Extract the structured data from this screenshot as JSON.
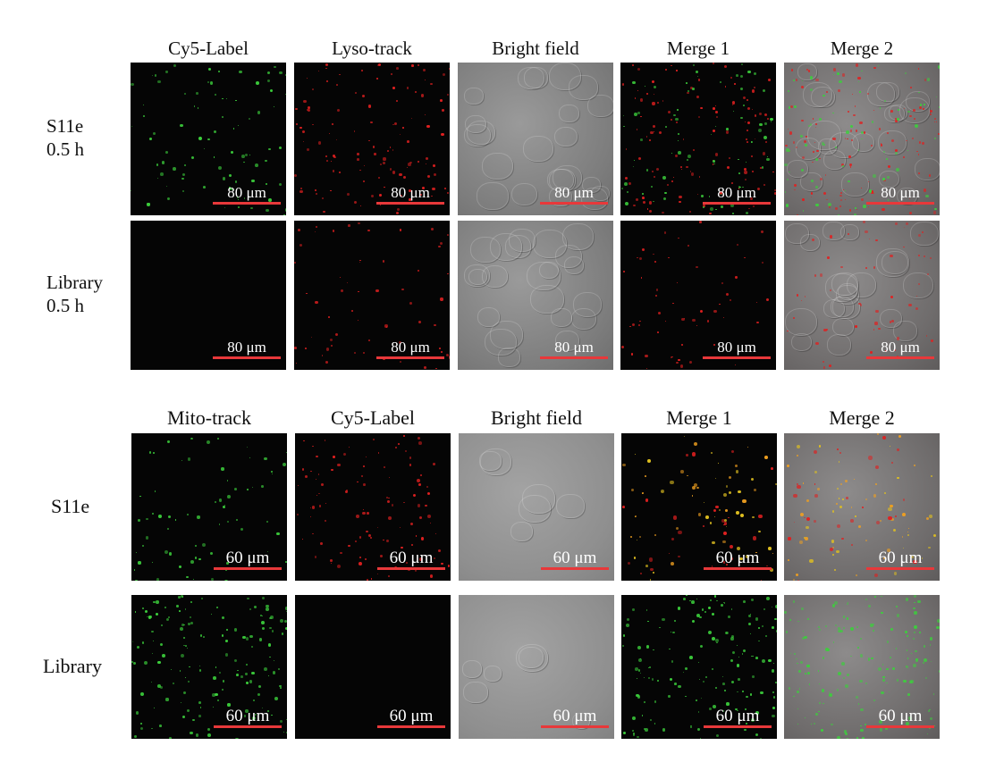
{
  "top_block": {
    "columns": [
      "Cy5-Label",
      "Lyso-track",
      "Bright field",
      "Merge 1",
      "Merge 2"
    ],
    "rows": [
      {
        "label_line1": "S11e",
        "label_line2": "0.5 h"
      },
      {
        "label_line1": "Library",
        "label_line2": "0.5 h"
      }
    ],
    "scale_bar": "80 μm"
  },
  "bottom_block": {
    "columns": [
      "Mito-track",
      "Cy5-Label",
      "Bright field",
      "Merge 1",
      "Merge 2"
    ],
    "rows": [
      {
        "label": "S11e"
      },
      {
        "label": "Library"
      }
    ],
    "scale_bar": "60 μm"
  },
  "colors": {
    "green_channel": "#3ccf3c",
    "red_channel": "#e02020",
    "merge_yellow": "#e0c020",
    "scale_bar": "#e8383a"
  }
}
